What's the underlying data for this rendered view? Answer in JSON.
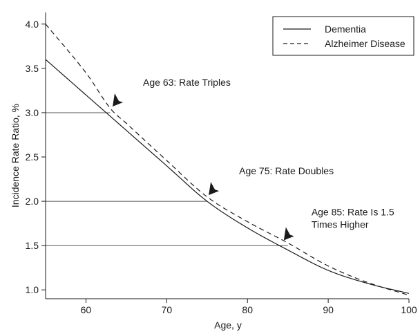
{
  "chart_data": {
    "type": "line",
    "title": "",
    "xlabel": "Age, y",
    "ylabel": "Incidence Rate Ratio, %",
    "xlim": [
      55,
      100
    ],
    "ylim": [
      0.9,
      4.1
    ],
    "x_ticks": [
      60,
      70,
      80,
      90,
      100
    ],
    "x_tick_labels": [
      "60",
      "70",
      "80",
      "90",
      "100"
    ],
    "y_ticks": [
      1.0,
      1.5,
      2.0,
      2.5,
      3.0,
      3.5,
      4.0
    ],
    "y_tick_labels": [
      "1.0",
      "1.5",
      "2.0",
      "2.5",
      "3.0",
      "3.5",
      "4.0"
    ],
    "grid": false,
    "legend_position": "top-right",
    "series": [
      {
        "name": "Dementia",
        "line_style": "solid",
        "x": [
          55,
          60,
          63,
          65,
          70,
          75,
          80,
          85,
          90,
          95,
          100
        ],
        "y": [
          3.6,
          3.2,
          2.96,
          2.8,
          2.4,
          2.0,
          1.7,
          1.45,
          1.22,
          1.07,
          0.96
        ]
      },
      {
        "name": "Alzheimer Disease",
        "line_style": "dashed",
        "x": [
          55,
          60,
          63,
          65,
          70,
          75,
          80,
          85,
          90,
          95,
          100
        ],
        "y": [
          4.0,
          3.45,
          3.05,
          2.88,
          2.46,
          2.05,
          1.77,
          1.53,
          1.27,
          1.08,
          0.94
        ]
      }
    ],
    "reference_lines": [
      {
        "y": 3.0,
        "x_end": 63
      },
      {
        "y": 2.0,
        "x_end": 75
      },
      {
        "y": 1.5,
        "x_end": 85
      }
    ],
    "annotations": [
      {
        "lines": [
          "Age 63: Rate Triples"
        ],
        "point": [
          63.3,
          3.07
        ]
      },
      {
        "lines": [
          "Age 75: Rate Doubles"
        ],
        "point": [
          75.2,
          2.07
        ]
      },
      {
        "lines": [
          "Age 85: Rate Is 1.5",
          "Times Higher"
        ],
        "point": [
          84.5,
          1.56
        ]
      }
    ],
    "colors": {
      "line": "#1a1a1a",
      "reference": "#555555",
      "background": "#ffffff"
    }
  }
}
